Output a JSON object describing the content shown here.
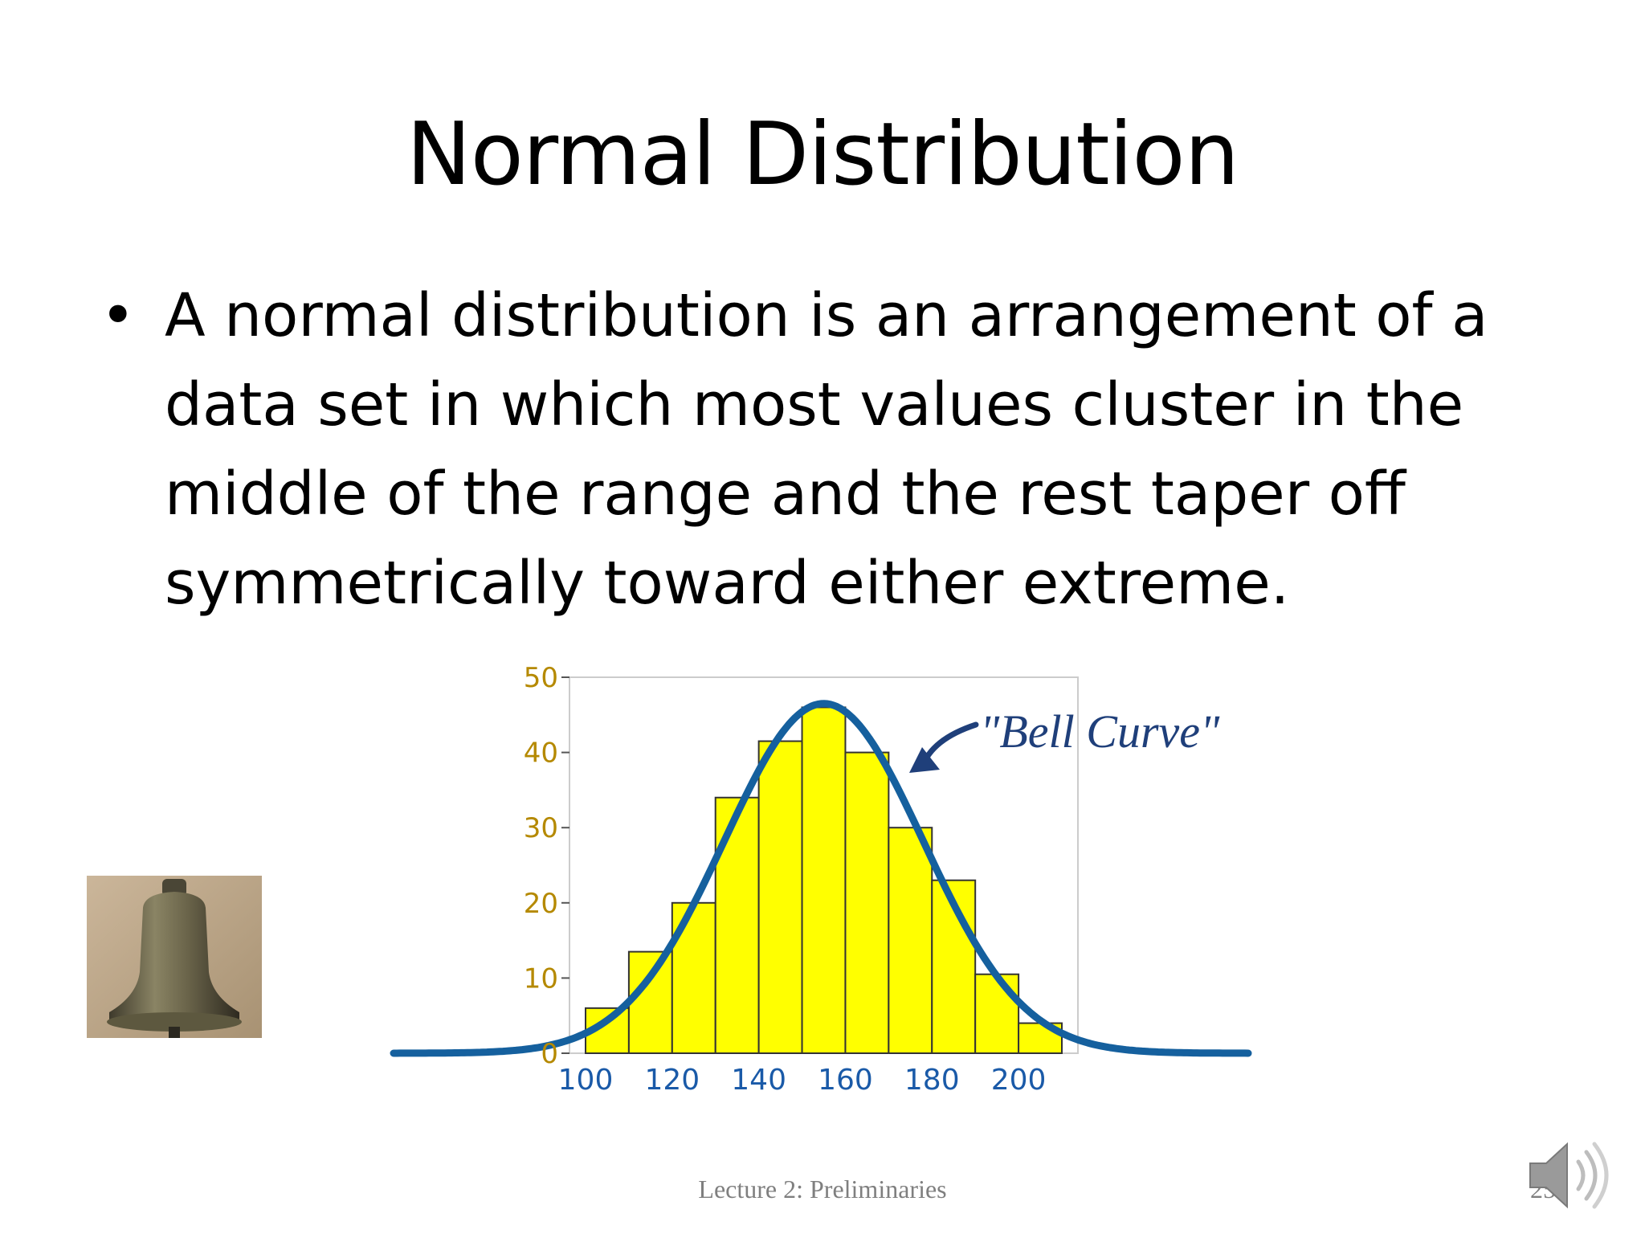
{
  "slide": {
    "title": "Normal Distribution",
    "bullet_text": "A normal distribution is an arrangement of a data set in which most values cluster in the middle of the range and the rest taper off symmetrically toward either extreme.",
    "footer": "Lecture 2: Preliminaries",
    "page_number": "25"
  },
  "icons": {
    "bell": "bell-photo",
    "speaker": "speaker-icon",
    "bullet": "bullet-dot"
  },
  "chart_data": {
    "type": "bar",
    "title": "",
    "xlabel": "",
    "ylabel": "",
    "bins": [
      {
        "from": 100,
        "to": 110,
        "value": 6
      },
      {
        "from": 110,
        "to": 120,
        "value": 13.5
      },
      {
        "from": 120,
        "to": 130,
        "value": 20
      },
      {
        "from": 130,
        "to": 140,
        "value": 34
      },
      {
        "from": 140,
        "to": 150,
        "value": 41.5
      },
      {
        "from": 150,
        "to": 160,
        "value": 46
      },
      {
        "from": 160,
        "to": 170,
        "value": 40
      },
      {
        "from": 170,
        "to": 180,
        "value": 30
      },
      {
        "from": 180,
        "to": 190,
        "value": 23
      },
      {
        "from": 190,
        "to": 200,
        "value": 10.5
      },
      {
        "from": 200,
        "to": 210,
        "value": 4
      }
    ],
    "xlim": [
      100,
      210
    ],
    "ylim": [
      0,
      50
    ],
    "x_ticks": [
      100,
      120,
      140,
      160,
      180,
      200
    ],
    "y_ticks": [
      0,
      10,
      20,
      30,
      40,
      50
    ],
    "curve": {
      "mean": 155,
      "sd": 23,
      "peak": 46.5
    },
    "annotation": "\"Bell Curve\"",
    "colors": {
      "bar": "#ffff00",
      "bar_edge": "#333333",
      "curve": "#15609e",
      "annotation": "#1f3f7a",
      "tick_y": "#b58900",
      "tick_x": "#1a5aa8",
      "frame": "#cccccc"
    }
  }
}
